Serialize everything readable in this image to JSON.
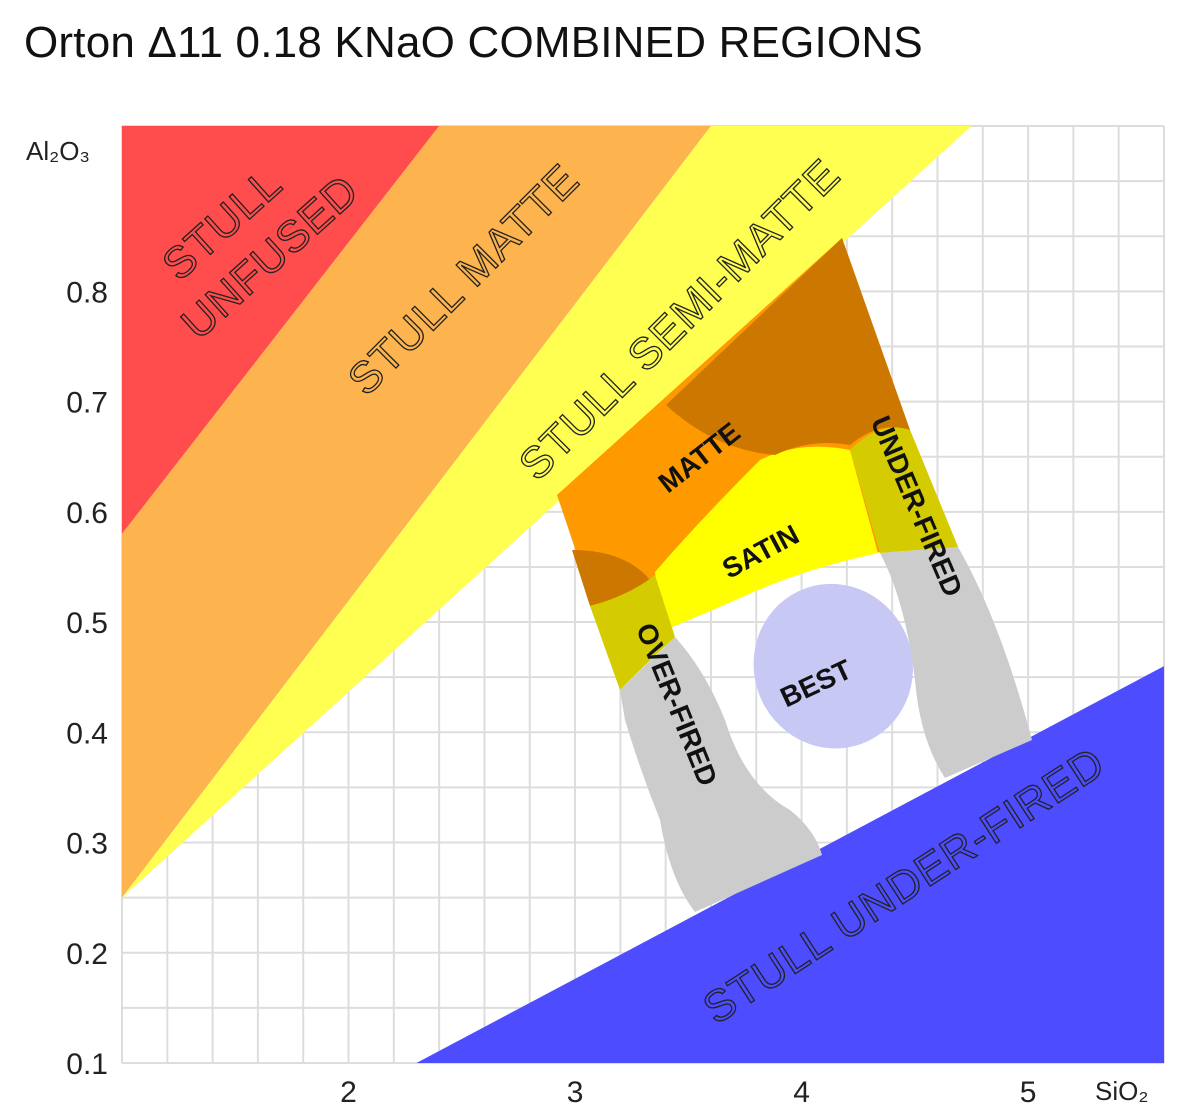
{
  "chart_data": {
    "type": "region-map",
    "title": "Orton Δ11 0.18 KNaO COMBINED REGIONS",
    "xlabel": "SiO₂",
    "ylabel": "Al₂O₃",
    "xlim": [
      1.0,
      5.6
    ],
    "ylim": [
      0.1,
      0.95
    ],
    "x_ticks": [
      2,
      3,
      4,
      5
    ],
    "x_tick_labels": [
      "2",
      "3",
      "4",
      "5"
    ],
    "y_ticks": [
      0.1,
      0.2,
      0.3,
      0.4,
      0.5,
      0.6,
      0.7,
      0.8
    ],
    "y_tick_labels": [
      "0.1",
      "0.2",
      "0.3",
      "0.4",
      "0.5",
      "0.6",
      "0.7",
      "0.8"
    ],
    "grid": true,
    "colors": {
      "unfused": "#ff4d4d",
      "matte_stull": "#fdb44f",
      "semi_matte_stull": "#ffff52",
      "under_fired_stull": "#4d4dff",
      "matte": "#ff9900",
      "satin": "#ffff00",
      "olive": "#d4cc00",
      "dark_matte": "#cc7700",
      "gray": "#cccccc",
      "best": "#c8c8f5"
    },
    "regions": [
      {
        "name": "stull-unfused",
        "label_1": "STULL",
        "label_2": "UNFUSED",
        "polygon": [
          [
            1.0,
            0.95
          ],
          [
            2.4,
            0.95
          ],
          [
            1.0,
            0.58
          ]
        ]
      },
      {
        "name": "stull-matte",
        "label": "STULL MATTE",
        "polygon": [
          [
            2.4,
            0.95
          ],
          [
            3.6,
            0.95
          ],
          [
            1.0,
            0.25
          ],
          [
            1.0,
            0.58
          ]
        ]
      },
      {
        "name": "stull-semi-matte",
        "label": "STULL SEMI-MATTE",
        "polygon": [
          [
            3.6,
            0.95
          ],
          [
            4.75,
            0.95
          ],
          [
            1.0,
            0.25
          ]
        ]
      },
      {
        "name": "stull-under-fired",
        "label": "STULL UNDER-FIRED",
        "polygon": [
          [
            2.3,
            0.1
          ],
          [
            5.6,
            0.1
          ],
          [
            5.6,
            0.46
          ]
        ]
      },
      {
        "name": "matte",
        "label": "MATTE"
      },
      {
        "name": "satin",
        "label": "SATIN"
      },
      {
        "name": "under-fired",
        "label": "UNDER-FIRED"
      },
      {
        "name": "over-fired",
        "label": "OVER-FIRED"
      },
      {
        "name": "best",
        "label": "BEST",
        "center": [
          4.14,
          0.46
        ],
        "rx": 0.35,
        "ry": 0.075
      }
    ]
  }
}
